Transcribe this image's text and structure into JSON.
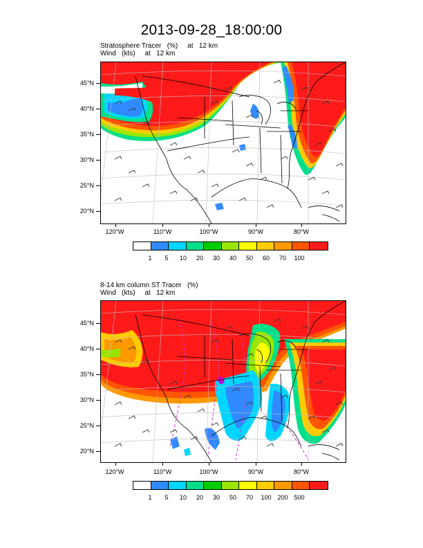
{
  "title": "2013-09-28_18:00:00",
  "colors": [
    "#ffffff",
    "#2f8bff",
    "#00d6ff",
    "#00e08a",
    "#00cc00",
    "#99e600",
    "#ffff00",
    "#ffcc00",
    "#ff9900",
    "#ff5500",
    "#ff1a1a"
  ],
  "panels": [
    {
      "label_line1": "Stratosphere Tracer   (%)     at   12 km",
      "label_line2": "Wind   (kts)     at   12 km",
      "lat_labels": [
        "45°N",
        "40°N",
        "35°N",
        "30°N",
        "25°N",
        "20°N"
      ],
      "lon_labels": [
        "120°W",
        "110°W",
        "100°W",
        "90°W",
        "80°W"
      ],
      "colorbar_labels": [
        "1",
        "5",
        "10",
        "20",
        "30",
        "40",
        "50",
        "60",
        "70",
        "100"
      ]
    },
    {
      "label_line1": "8-14 km column ST Tracer   (%)",
      "label_line2": "Wind   (kts)     at   12 km",
      "lat_labels": [
        "45°N",
        "40°N",
        "35°N",
        "30°N",
        "25°N",
        "20°N"
      ],
      "lon_labels": [
        "120°W",
        "110°W",
        "100°W",
        "90°W",
        "80°W"
      ],
      "colorbar_labels": [
        "1",
        "5",
        "10",
        "20",
        "30",
        "50",
        "70",
        "100",
        "200",
        "500"
      ]
    }
  ]
}
